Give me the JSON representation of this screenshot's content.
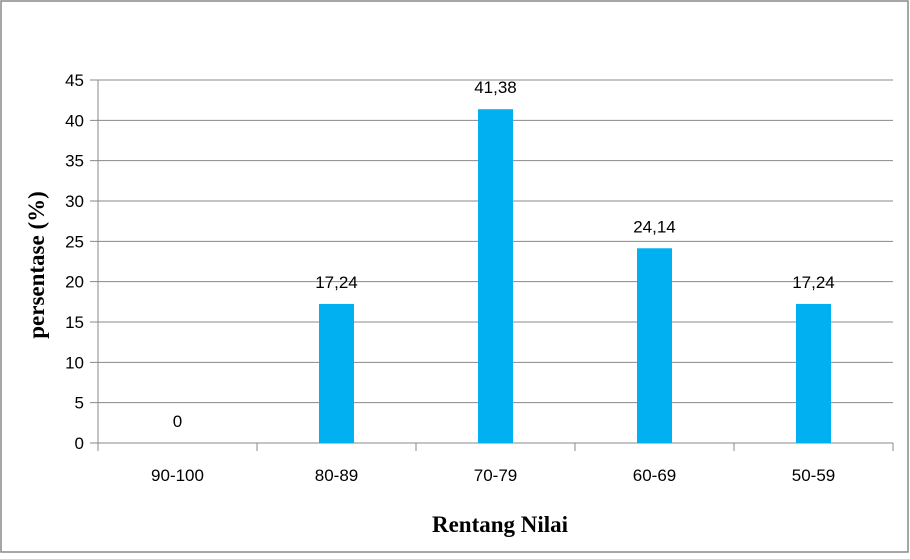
{
  "chart_data": {
    "type": "bar",
    "title": "",
    "categories": [
      "90-100",
      "80-89",
      "70-79",
      "60-69",
      "50-59"
    ],
    "values": [
      0,
      17.24,
      41.38,
      24.14,
      17.24
    ],
    "data_labels": [
      "0",
      "17,24",
      "41,38",
      "24,14",
      "17,24"
    ],
    "xlabel": "Rentang Nilai",
    "ylabel": "persentase (%)",
    "ylim": [
      0,
      45
    ],
    "yticks": [
      "0",
      "5",
      "10",
      "15",
      "20",
      "25",
      "30",
      "35",
      "40",
      "45"
    ],
    "grid": true,
    "legend": "none",
    "bar_color": "#00B0F0",
    "grid_color": "#888888",
    "border_color": "#888888"
  }
}
